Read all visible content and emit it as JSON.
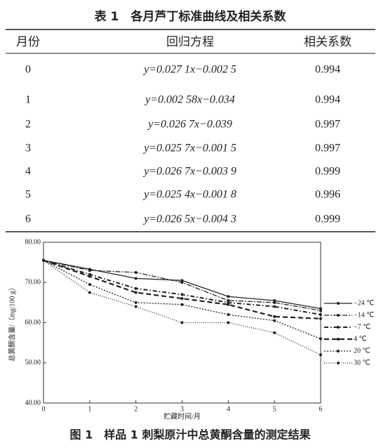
{
  "table": {
    "title": "表 1　各月芦丁标准曲线及相关系数",
    "header": [
      "月份",
      "回归方程",
      "相关系数"
    ],
    "rows": [
      [
        "0",
        "y=0.027 1x−0.002 5",
        "0.994"
      ],
      [
        "1",
        "y=0.002 58x−0.034",
        "0.994"
      ],
      [
        "2",
        "y=0.026 7x−0.039",
        "0.997"
      ],
      [
        "3",
        "y=0.025 7x−0.001 5",
        "0.997"
      ],
      [
        "4",
        "y=0.026 7x−0.003 9",
        "0.999"
      ],
      [
        "5",
        "y=0.025 4x−0.001 8",
        "0.996"
      ],
      [
        "6",
        "y=0.026 5x−0.004 3",
        "0.999"
      ]
    ]
  },
  "chart_data": {
    "type": "line",
    "title": "图 1　样品 1 刺梨原汁中总黄酮含量的测定结果",
    "x_label": "贮藏时间/月",
    "y_label": "总黄酮含量/（mg/100 g）",
    "x": [
      0,
      1,
      2,
      3,
      4,
      5,
      6
    ],
    "xlim": [
      0,
      6
    ],
    "xticks": [
      0,
      1,
      2,
      3,
      4,
      5,
      6
    ],
    "ylim": [
      40,
      80
    ],
    "yticks": [
      {
        "value": 40,
        "label": "40.00"
      },
      {
        "value": 50,
        "label": "50.00"
      },
      {
        "value": 60,
        "label": "60.00"
      },
      {
        "value": 70,
        "label": "70.00"
      },
      {
        "value": 80,
        "label": "80.00"
      }
    ],
    "legend": "right",
    "series": [
      {
        "name": "−24 ℃",
        "color": "#222",
        "dash": "solid",
        "values": [
          75.5,
          73.3,
          71.0,
          70.5,
          66.5,
          65.5,
          63.5
        ]
      },
      {
        "name": "−14 ℃",
        "color": "#222",
        "dash": "longdash",
        "values": [
          75.5,
          73.0,
          72.5,
          70.0,
          65.5,
          65.0,
          63.0
        ]
      },
      {
        "name": "−7 ℃",
        "color": "#222",
        "dash": "dashdot",
        "values": [
          75.5,
          72.0,
          68.5,
          67.0,
          65.0,
          64.0,
          62.0
        ]
      },
      {
        "name": "4 ℃",
        "color": "#222",
        "dash": "dashed",
        "values": [
          75.5,
          71.5,
          67.5,
          66.0,
          64.5,
          61.5,
          61.0
        ]
      },
      {
        "name": "20 ℃",
        "color": "#222",
        "dash": "dotted",
        "values": [
          75.5,
          69.5,
          65.0,
          64.5,
          62.0,
          60.5,
          56.0
        ]
      },
      {
        "name": "30 ℃",
        "color": "#222",
        "dash": "finedot",
        "values": [
          75.5,
          67.5,
          64.0,
          60.0,
          60.0,
          57.5,
          52.0
        ]
      }
    ]
  }
}
